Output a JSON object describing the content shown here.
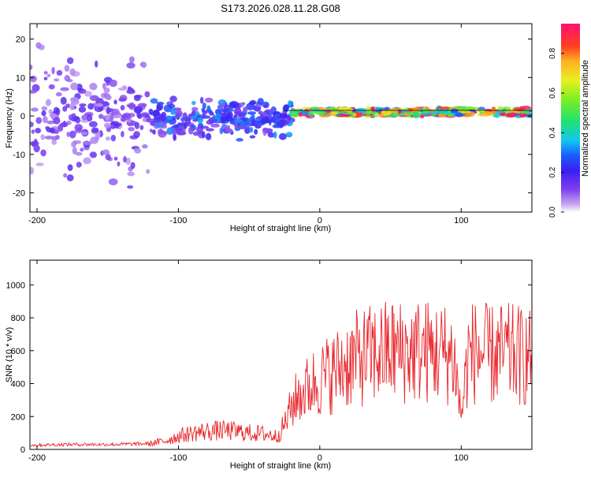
{
  "page_title": "S173.2026.028.11.28.G08",
  "colors": {
    "snr_line": "#e8262b",
    "axis": "#000000",
    "background": "#ffffff"
  },
  "chart_data": [
    {
      "type": "heatmap",
      "title": "S173.2026.028.11.28.G08",
      "xlabel": "Height of straight line (km)",
      "ylabel": "Frequency (Hz)",
      "xlim": [
        -205,
        150
      ],
      "ylim": [
        -25,
        24
      ],
      "x_ticks": [
        -200,
        -100,
        0,
        100
      ],
      "y_ticks": [
        -20,
        -10,
        0,
        10,
        20
      ],
      "colorbar": {
        "label": "Normalized spectral amplitude",
        "range": [
          0.0,
          0.95
        ],
        "ticks": [
          "0.0",
          "0.2",
          "0.4",
          "0.6",
          "0.8"
        ],
        "colormap": "rainbow"
      },
      "features": [
        {
          "x_range": [
            -205,
            -120
          ],
          "freq_center": 0,
          "freq_spread": 20,
          "amplitude": 0.15
        },
        {
          "x_range": [
            -120,
            -20
          ],
          "freq_center": -1,
          "freq_spread": 6,
          "amplitude": 0.3
        },
        {
          "x_range": [
            -20,
            150
          ],
          "freq_center": 1,
          "freq_spread": 1,
          "amplitude": 0.9
        }
      ]
    },
    {
      "type": "line",
      "xlabel": "Height of straight line (km)",
      "ylabel": "SNR (10 * v/v)",
      "xlim": [
        -205,
        150
      ],
      "ylim": [
        0,
        1150
      ],
      "x_ticks": [
        -200,
        -100,
        0,
        100
      ],
      "y_ticks": [
        0,
        200,
        400,
        600,
        800,
        1000
      ],
      "series": [
        {
          "x": [
            -205,
            -180,
            -150,
            -120,
            -110,
            -100,
            -90,
            -80,
            -70,
            -60,
            -50,
            -40,
            -30,
            -25,
            -20,
            -15,
            -10,
            -5,
            0,
            5,
            10,
            15,
            20,
            30,
            40,
            50,
            60,
            70,
            80,
            90,
            95,
            100,
            105,
            110,
            120,
            130,
            140,
            150
          ],
          "y": [
            25,
            30,
            30,
            35,
            50,
            80,
            100,
            110,
            115,
            110,
            100,
            95,
            80,
            150,
            260,
            330,
            360,
            400,
            420,
            450,
            470,
            500,
            530,
            560,
            580,
            600,
            590,
            600,
            590,
            580,
            560,
            200,
            580,
            590,
            570,
            580,
            570,
            560
          ]
        }
      ]
    }
  ]
}
